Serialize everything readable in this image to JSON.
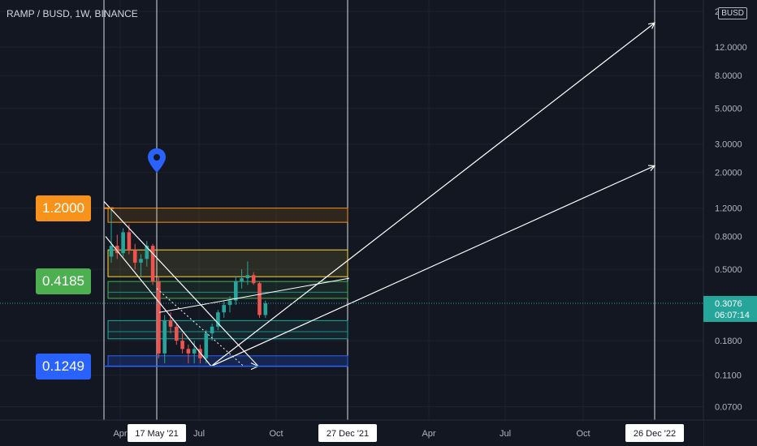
{
  "header": {
    "symbol_title": "RAMP / BUSD, 1W, BINANCE",
    "currency_badge": "BUSD"
  },
  "current_price": {
    "value": "0.3076",
    "countdown": "06:07:14",
    "color": "#26a69a"
  },
  "price_tags": [
    {
      "label": "1.2000",
      "color": "#f7931a"
    },
    {
      "label": "0.4185",
      "color": "#4caf50"
    },
    {
      "label": "0.1249",
      "color": "#2962ff"
    }
  ],
  "colors": {
    "background": "#131722",
    "up": "#26a69a",
    "down": "#ef5350",
    "vertical_line": "#ffffff"
  },
  "chart_data": {
    "type": "candlestick",
    "title": "RAMP / BUSD, 1W, BINANCE",
    "yscale": "log",
    "ylim": [
      0.062,
      22
    ],
    "y_ticks": [
      "20.0000",
      "12.0000",
      "8.0000",
      "5.0000",
      "3.0000",
      "2.0000",
      "1.2000",
      "0.8000",
      "0.5000",
      "0.3076",
      "0.1800",
      "0.1100",
      "0.0700"
    ],
    "x_ticks": [
      "Apr",
      "17 May '21",
      "Jul",
      "Oct",
      "27 Dec '21",
      "Apr",
      "Jul",
      "Oct",
      "26 Dec '22"
    ],
    "highlighted_dates": [
      "17 May '21",
      "27 Dec '21",
      "26 Dec '22"
    ],
    "candles": [
      {
        "o": 0.6,
        "h": 1.18,
        "l": 0.55,
        "c": 0.7
      },
      {
        "o": 0.7,
        "h": 0.82,
        "l": 0.58,
        "c": 0.63
      },
      {
        "o": 0.63,
        "h": 0.9,
        "l": 0.6,
        "c": 0.85
      },
      {
        "o": 0.85,
        "h": 0.95,
        "l": 0.62,
        "c": 0.66
      },
      {
        "o": 0.66,
        "h": 0.72,
        "l": 0.5,
        "c": 0.55
      },
      {
        "o": 0.55,
        "h": 0.62,
        "l": 0.45,
        "c": 0.58
      },
      {
        "o": 0.58,
        "h": 0.75,
        "l": 0.52,
        "c": 0.7
      },
      {
        "o": 0.7,
        "h": 0.72,
        "l": 0.4,
        "c": 0.42
      },
      {
        "o": 0.42,
        "h": 0.45,
        "l": 0.14,
        "c": 0.15
      },
      {
        "o": 0.15,
        "h": 0.26,
        "l": 0.13,
        "c": 0.24
      },
      {
        "o": 0.24,
        "h": 0.27,
        "l": 0.2,
        "c": 0.22
      },
      {
        "o": 0.22,
        "h": 0.23,
        "l": 0.17,
        "c": 0.18
      },
      {
        "o": 0.18,
        "h": 0.2,
        "l": 0.15,
        "c": 0.16
      },
      {
        "o": 0.16,
        "h": 0.17,
        "l": 0.13,
        "c": 0.15
      },
      {
        "o": 0.15,
        "h": 0.18,
        "l": 0.13,
        "c": 0.16
      },
      {
        "o": 0.16,
        "h": 0.17,
        "l": 0.13,
        "c": 0.14
      },
      {
        "o": 0.14,
        "h": 0.21,
        "l": 0.13,
        "c": 0.2
      },
      {
        "o": 0.2,
        "h": 0.23,
        "l": 0.18,
        "c": 0.22
      },
      {
        "o": 0.22,
        "h": 0.28,
        "l": 0.21,
        "c": 0.27
      },
      {
        "o": 0.27,
        "h": 0.32,
        "l": 0.25,
        "c": 0.3
      },
      {
        "o": 0.3,
        "h": 0.34,
        "l": 0.27,
        "c": 0.32
      },
      {
        "o": 0.32,
        "h": 0.45,
        "l": 0.3,
        "c": 0.42
      },
      {
        "o": 0.42,
        "h": 0.5,
        "l": 0.38,
        "c": 0.44
      },
      {
        "o": 0.44,
        "h": 0.56,
        "l": 0.4,
        "c": 0.46
      },
      {
        "o": 0.46,
        "h": 0.48,
        "l": 0.4,
        "c": 0.41
      },
      {
        "o": 0.41,
        "h": 0.42,
        "l": 0.25,
        "c": 0.26
      },
      {
        "o": 0.26,
        "h": 0.32,
        "l": 0.25,
        "c": 0.3076
      }
    ],
    "zones": [
      {
        "top": 1.2,
        "bottom": 0.98,
        "fill": "rgba(255,152,0,0.12)",
        "stroke": "#f7931a"
      },
      {
        "top": 0.66,
        "bottom": 0.45,
        "fill": "rgba(255,235,59,0.10)",
        "stroke": "#fdd835"
      },
      {
        "top": 0.42,
        "bottom": 0.33,
        "fill": "rgba(76,175,80,0.10)",
        "stroke": "#4caf50"
      },
      {
        "top": 0.24,
        "bottom": 0.185,
        "fill": "rgba(38,166,154,0.10)",
        "stroke": "#26a69a"
      },
      {
        "top": 0.145,
        "bottom": 0.1249,
        "fill": "rgba(41,98,255,0.20)",
        "stroke": "#2962ff"
      }
    ],
    "projections": [
      {
        "from_price": 0.1249,
        "to_price": 17.0
      },
      {
        "from_price": 0.1249,
        "to_price": 2.2
      }
    ]
  }
}
